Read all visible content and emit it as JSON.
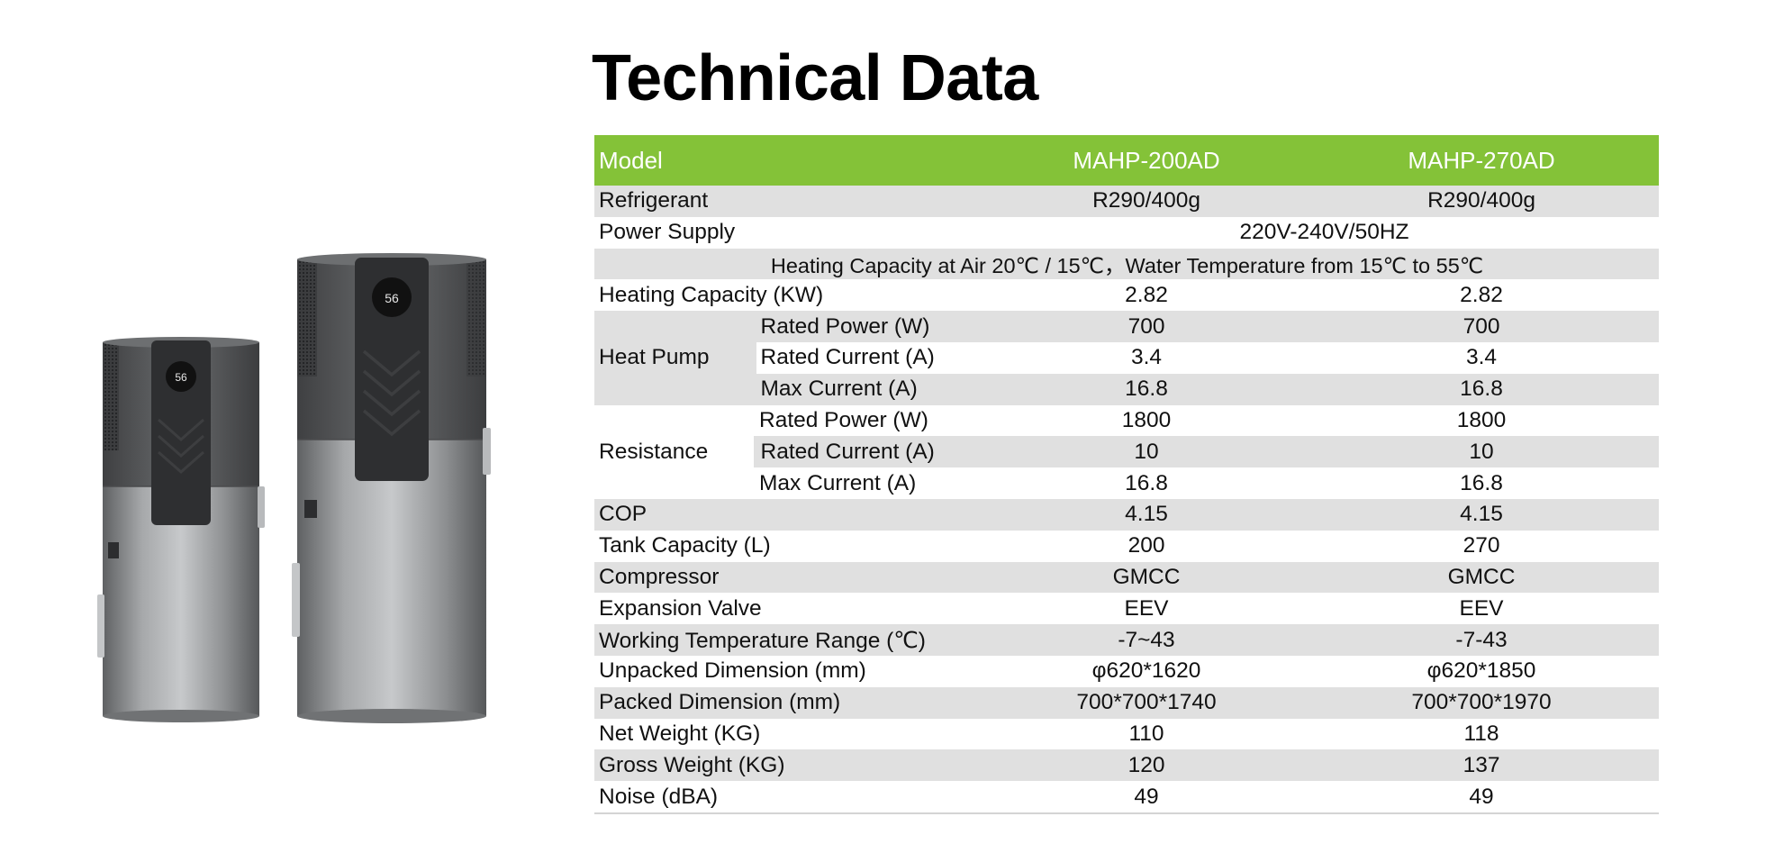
{
  "title": "Technical Data",
  "table": {
    "header": {
      "label": "Model",
      "col1": "MAHP-200AD",
      "col2": "MAHP-270AD"
    },
    "refrigerant": {
      "label": "Refrigerant",
      "col1": "R290/400g",
      "col2": "R290/400g"
    },
    "power_supply": {
      "label": "Power Supply",
      "value": "220V-240V/50HZ"
    },
    "note": "Heating Capacity at Air 20℃ / 15℃，Water Temperature from 15℃ to 55℃",
    "heating_capacity": {
      "label": "Heating Capacity (KW)",
      "col1": "2.82",
      "col2": "2.82"
    },
    "heat_pump": {
      "label": "Heat Pump",
      "rows": [
        {
          "label": "Rated Power (W)",
          "col1": "700",
          "col2": "700"
        },
        {
          "label": "Rated Current (A)",
          "col1": "3.4",
          "col2": "3.4"
        },
        {
          "label": "Max Current (A)",
          "col1": "16.8",
          "col2": "16.8"
        }
      ]
    },
    "resistance": {
      "label": "Resistance",
      "rows": [
        {
          "label": "Rated Power (W)",
          "col1": "1800",
          "col2": "1800"
        },
        {
          "label": "Rated Current (A)",
          "col1": "10",
          "col2": "10"
        },
        {
          "label": "Max Current (A)",
          "col1": "16.8",
          "col2": "16.8"
        }
      ]
    },
    "rows": [
      {
        "label": "COP",
        "col1": "4.15",
        "col2": "4.15"
      },
      {
        "label": "Tank Capacity (L)",
        "col1": "200",
        "col2": "270"
      },
      {
        "label": "Compressor",
        "col1": "GMCC",
        "col2": "GMCC"
      },
      {
        "label": "Expansion Valve",
        "col1": "EEV",
        "col2": "EEV"
      },
      {
        "label": "Working Temperature Range (℃)",
        "col1": "-7~43",
        "col2": "-7-43"
      },
      {
        "label": "Unpacked Dimension (mm)",
        "col1": "φ620*1620",
        "col2": "φ620*1850"
      },
      {
        "label": "Packed Dimension (mm)",
        "col1": "700*700*1740",
        "col2": "700*700*1970"
      },
      {
        "label": "Net Weight (KG)",
        "col1": "110",
        "col2": "118"
      },
      {
        "label": "Gross Weight (KG)",
        "col1": "120",
        "col2": "137"
      },
      {
        "label": "Noise (dBA)",
        "col1": "49",
        "col2": "49"
      }
    ]
  },
  "display": {
    "small_unit_reading": "56",
    "large_unit_reading": "56"
  },
  "colors": {
    "header_green": "#84c238",
    "row_gray": "#e0e0e0",
    "unit_body": "#8a8c8e",
    "panel": "#2e2f31"
  }
}
